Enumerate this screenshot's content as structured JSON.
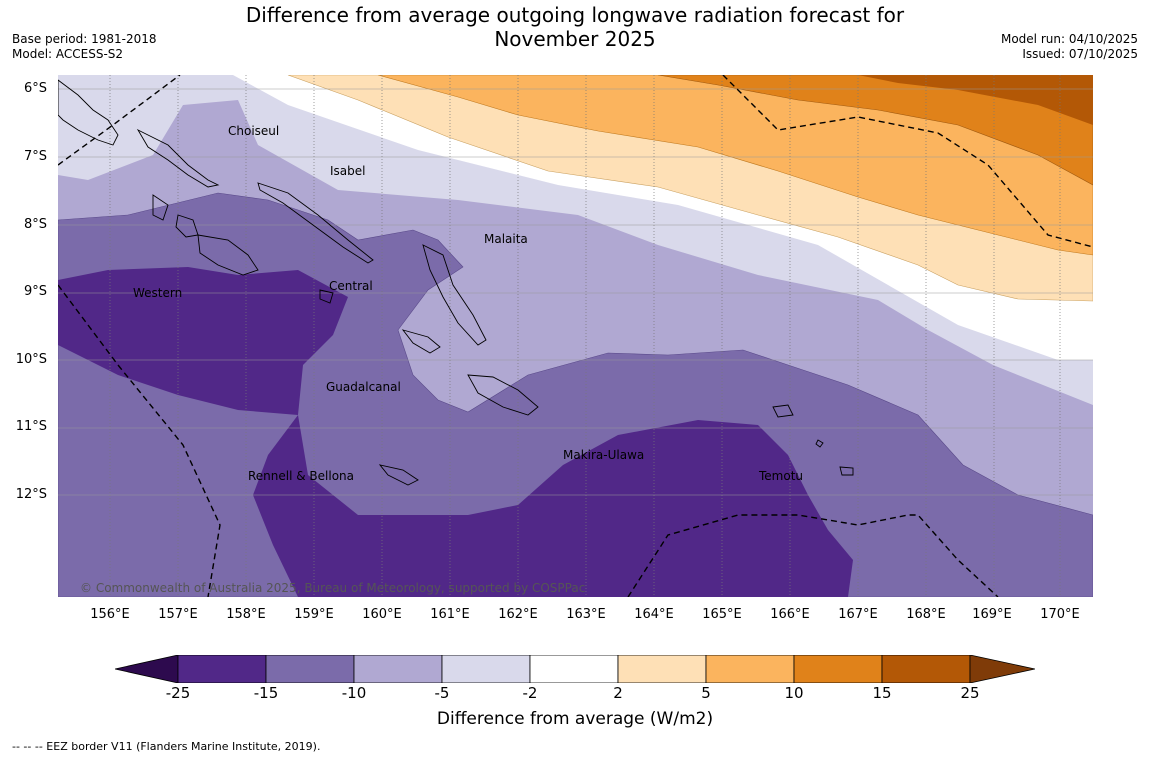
{
  "title_line1": "Difference from average outgoing longwave radiation forecast for",
  "title_line2": "November 2025",
  "base_period": "Base period: 1981-2018",
  "model": "Model: ACCESS-S2",
  "model_run": "Model run: 04/10/2025",
  "issued": "Issued: 07/10/2025",
  "copyright": "© Commonwealth of Australia 2025, Bureau of Meteorology, supported by COSPPac",
  "lat_labels": [
    "6°S",
    "7°S",
    "8°S",
    "9°S",
    "10°S",
    "11°S",
    "12°S"
  ],
  "lon_labels": [
    "156°E",
    "157°E",
    "158°E",
    "159°E",
    "160°E",
    "161°E",
    "162°E",
    "163°E",
    "164°E",
    "165°E",
    "166°E",
    "167°E",
    "168°E",
    "169°E",
    "170°E"
  ],
  "provinces": [
    "Choiseul",
    "Isabel",
    "Malaita",
    "Western",
    "Central",
    "Guadalcanal",
    "Rennell & Bellona",
    "Makira-Ulawa",
    "Temotu"
  ],
  "colorbar": {
    "ticks": [
      "-25",
      "-15",
      "-10",
      "-5",
      "-2",
      "2",
      "5",
      "10",
      "15",
      "25"
    ],
    "colors": [
      "#2d0a4e",
      "#512888",
      "#7b6baa",
      "#b0a8d2",
      "#d9d9eb",
      "#ffffff",
      "#fee0b6",
      "#fbb45e",
      "#e0821a",
      "#b35806",
      "#7f3b08"
    ],
    "title": "Difference from average (W/m2)"
  },
  "footnote": "--  --  -- EEZ border V11 (Flanders Marine Institute, 2019)."
}
